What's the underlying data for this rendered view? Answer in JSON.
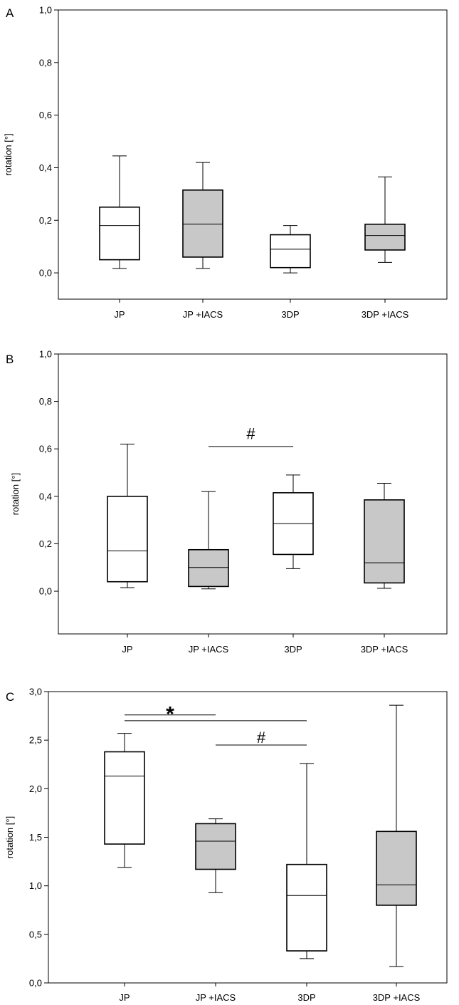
{
  "chart_data": [
    {
      "panel_label": "A",
      "type": "boxplot",
      "ylabel": "rotation [°]",
      "ylim": [
        -0.1,
        1.0
      ],
      "yticks": [
        "0,0",
        "0,2",
        "0,4",
        "0,6",
        "0,8",
        "1,0"
      ],
      "ytick_values": [
        0,
        0.2,
        0.4,
        0.6,
        0.8,
        1.0
      ],
      "categories": [
        "JP",
        "JP +IACS",
        "3DP",
        "3DP +IACS"
      ],
      "boxes": [
        {
          "min": 0.017,
          "q1": 0.05,
          "median": 0.18,
          "q3": 0.25,
          "max": 0.445,
          "fill": "#ffffff"
        },
        {
          "min": 0.017,
          "q1": 0.06,
          "median": 0.185,
          "q3": 0.315,
          "max": 0.42,
          "fill": "#c8c8c8"
        },
        {
          "min": 0.0,
          "q1": 0.02,
          "median": 0.09,
          "q3": 0.145,
          "max": 0.18,
          "fill": "#ffffff"
        },
        {
          "min": 0.04,
          "q1": 0.087,
          "median": 0.142,
          "q3": 0.185,
          "max": 0.365,
          "fill": "#c8c8c8"
        }
      ],
      "annotations": []
    },
    {
      "panel_label": "B",
      "type": "boxplot",
      "ylabel": "rotation [°]",
      "ylim": [
        -0.18,
        1.0
      ],
      "yticks": [
        "0,0",
        "0,2",
        "0,4",
        "0,6",
        "0,8",
        "1,0"
      ],
      "ytick_values": [
        0,
        0.2,
        0.4,
        0.6,
        0.8,
        1.0
      ],
      "categories": [
        "JP",
        "JP +IACS",
        "3DP",
        "3DP +IACS"
      ],
      "boxes": [
        {
          "min": 0.015,
          "q1": 0.04,
          "median": 0.17,
          "q3": 0.4,
          "max": 0.62,
          "fill": "#ffffff"
        },
        {
          "min": 0.01,
          "q1": 0.02,
          "median": 0.1,
          "q3": 0.175,
          "max": 0.42,
          "fill": "#c8c8c8"
        },
        {
          "min": 0.095,
          "q1": 0.155,
          "median": 0.285,
          "q3": 0.415,
          "max": 0.49,
          "fill": "#ffffff"
        },
        {
          "min": 0.012,
          "q1": 0.035,
          "median": 0.12,
          "q3": 0.385,
          "max": 0.455,
          "fill": "#c8c8c8"
        }
      ],
      "annotations": [
        {
          "symbol": "#",
          "from": "JP +IACS",
          "to": "3DP",
          "y": 0.61,
          "symbol_y": 0.665
        }
      ]
    },
    {
      "panel_label": "C",
      "type": "boxplot",
      "ylabel": "rotation [°]",
      "ylim": [
        0.0,
        3.0
      ],
      "yticks": [
        "0,0",
        "0,5",
        "1,0",
        "1,5",
        "2,0",
        "2,5",
        "3,0"
      ],
      "ytick_values": [
        0,
        0.5,
        1.0,
        1.5,
        2.0,
        2.5,
        3.0
      ],
      "categories": [
        "JP",
        "JP +IACS",
        "3DP",
        "3DP +IACS"
      ],
      "boxes": [
        {
          "min": 1.19,
          "q1": 1.43,
          "median": 2.13,
          "q3": 2.38,
          "max": 2.57,
          "fill": "#ffffff"
        },
        {
          "min": 0.93,
          "q1": 1.17,
          "median": 1.46,
          "q3": 1.64,
          "max": 1.69,
          "fill": "#c8c8c8"
        },
        {
          "min": 0.25,
          "q1": 0.33,
          "median": 0.9,
          "q3": 1.22,
          "max": 2.26,
          "fill": "#ffffff"
        },
        {
          "min": 0.17,
          "q1": 0.8,
          "median": 1.01,
          "q3": 1.56,
          "max": 2.86,
          "fill": "#c8c8c8"
        }
      ],
      "annotations": [
        {
          "symbol": "*",
          "from": "JP",
          "to": "JP +IACS",
          "y": 2.76,
          "symbol_y": 2.8
        },
        {
          "symbol": "",
          "from": "JP",
          "to": "3DP",
          "y": 2.7
        },
        {
          "symbol": "#",
          "from": "JP +IACS",
          "to": "3DP",
          "y": 2.45,
          "symbol_y": 2.53
        }
      ]
    }
  ]
}
